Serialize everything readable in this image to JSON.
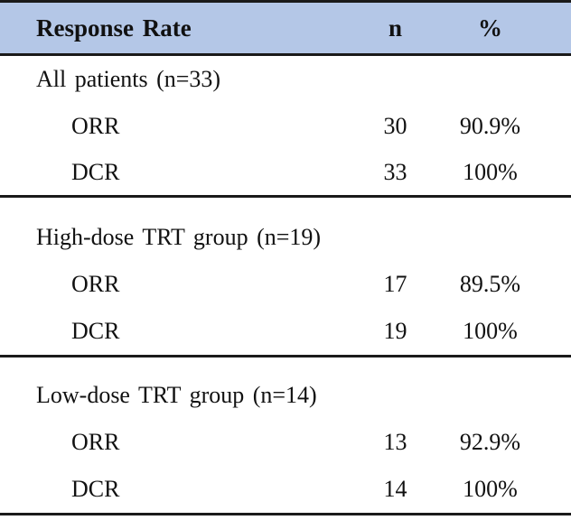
{
  "table": {
    "header": {
      "col1": "Response Rate",
      "col2": "n",
      "col3": "%"
    },
    "sections": [
      {
        "group": "All patients (n=33)",
        "rows": [
          {
            "label": "ORR",
            "n": "30",
            "pct": "90.9%"
          },
          {
            "label": "DCR",
            "n": "33",
            "pct": "100%"
          }
        ]
      },
      {
        "group": "High-dose TRT group (n=19)",
        "rows": [
          {
            "label": "ORR",
            "n": "17",
            "pct": "89.5%"
          },
          {
            "label": "DCR",
            "n": "19",
            "pct": "100%"
          }
        ]
      },
      {
        "group": "Low-dose TRT group (n=14)",
        "rows": [
          {
            "label": "ORR",
            "n": "13",
            "pct": "92.9%"
          },
          {
            "label": "DCR",
            "n": "14",
            "pct": "100%"
          }
        ]
      }
    ],
    "colors": {
      "header_bg": "#b4c7e7",
      "border": "#1a1a1a",
      "text": "#111111"
    }
  },
  "chart_data": {
    "type": "table",
    "title": "Response Rate",
    "columns": [
      "Response Rate",
      "n",
      "%"
    ],
    "rows": [
      [
        "All patients (n=33)",
        "",
        ""
      ],
      [
        "ORR",
        "30",
        "90.9%"
      ],
      [
        "DCR",
        "33",
        "100%"
      ],
      [
        "High-dose TRT group (n=19)",
        "",
        ""
      ],
      [
        "ORR",
        "17",
        "89.5%"
      ],
      [
        "DCR",
        "19",
        "100%"
      ],
      [
        "Low-dose TRT group (n=14)",
        "",
        ""
      ],
      [
        "ORR",
        "13",
        "92.9%"
      ],
      [
        "DCR",
        "14",
        "100%"
      ]
    ]
  }
}
